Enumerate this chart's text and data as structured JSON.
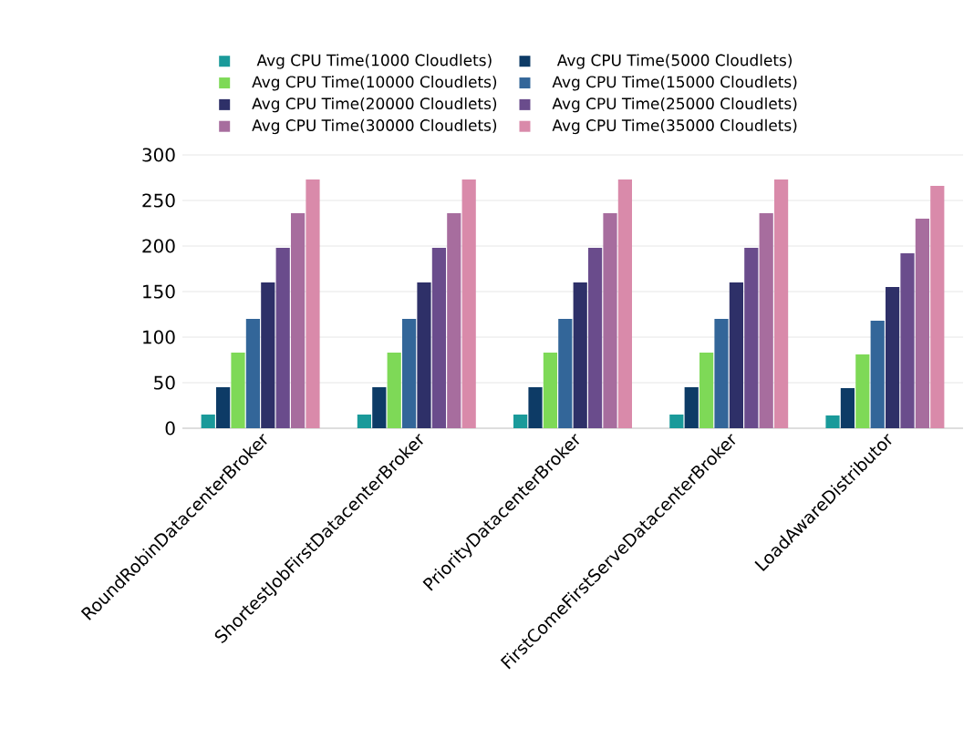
{
  "chart_data": {
    "type": "bar",
    "categories": [
      "RoundRobinDatacenterBroker",
      "ShortestJobFirstDatacenterBroker",
      "PriorityDatacenterBroker",
      "FirstComeFirstServeDatacenterBroker",
      "LoadAwareDistributor"
    ],
    "series": [
      {
        "name": "Avg CPU Time(1000 Cloudlets)",
        "color": "#1a9a9a",
        "values": [
          15,
          15,
          15,
          15,
          14
        ]
      },
      {
        "name": "Avg CPU Time(5000 Cloudlets)",
        "color": "#0d3b66",
        "values": [
          45,
          45,
          45,
          45,
          44
        ]
      },
      {
        "name": "Avg CPU Time(10000 Cloudlets)",
        "color": "#7ed957",
        "values": [
          83,
          83,
          83,
          83,
          81
        ]
      },
      {
        "name": "Avg CPU Time(15000 Cloudlets)",
        "color": "#336699",
        "values": [
          120,
          120,
          120,
          120,
          118
        ]
      },
      {
        "name": "Avg CPU Time(20000 Cloudlets)",
        "color": "#2e3068",
        "values": [
          160,
          160,
          160,
          160,
          155
        ]
      },
      {
        "name": "Avg CPU Time(25000 Cloudlets)",
        "color": "#6a4c8c",
        "values": [
          198,
          198,
          198,
          198,
          192
        ]
      },
      {
        "name": "Avg CPU Time(30000 Cloudlets)",
        "color": "#a76d9e",
        "values": [
          236,
          236,
          236,
          236,
          230
        ]
      },
      {
        "name": "Avg CPU Time(35000 Cloudlets)",
        "color": "#d98aaa",
        "values": [
          273,
          273,
          273,
          273,
          266
        ]
      }
    ],
    "ylim": [
      0,
      300
    ],
    "yticks": [
      0,
      50,
      100,
      150,
      200,
      250,
      300
    ],
    "grid": "y",
    "legend": "top"
  }
}
